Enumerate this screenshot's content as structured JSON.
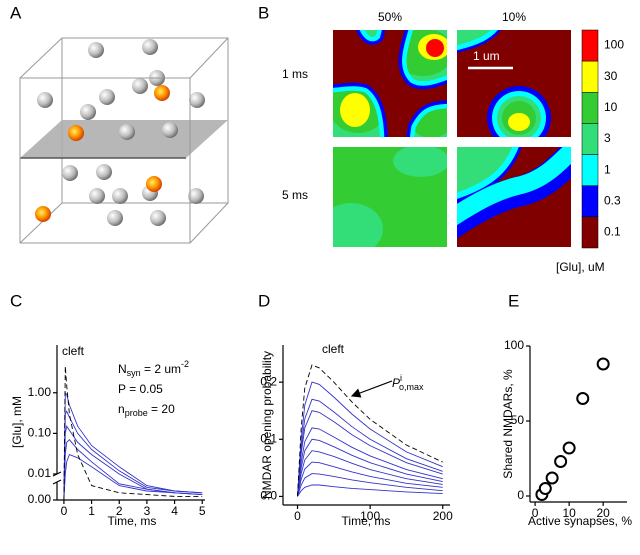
{
  "panel_labels": [
    "A",
    "B",
    "C",
    "D",
    "E"
  ],
  "panel_b": {
    "columns": [
      "50%",
      "10%"
    ],
    "rows": [
      "1 ms",
      "5 ms"
    ],
    "scale_bar": "1 um",
    "colorbar": {
      "labels": [
        "100",
        "30",
        "10",
        "3",
        "1",
        "0.3",
        "0.1"
      ],
      "colors": [
        "#ff0000",
        "#ffff00",
        "#33cc33",
        "#33dd77",
        "#00ffff",
        "#0000ff",
        "#800000"
      ],
      "title": "[Glu], uM"
    }
  },
  "chart_data": [
    {
      "type": "line",
      "log_scale": true,
      "xlabel": "Time, ms",
      "ylabel": "[Glu], mM",
      "x": [
        0,
        0.05,
        0.1,
        0.2,
        0.5,
        1,
        2,
        3,
        4,
        5
      ],
      "xlim": [
        -0.25,
        5.1
      ],
      "ylim": [
        0,
        15
      ],
      "xticks": [
        0,
        1,
        2,
        3,
        4,
        5
      ],
      "yticks": [
        {
          "value": 0,
          "label": "0.00"
        },
        0.01,
        {
          "value": 0.1,
          "label": "0.10"
        },
        {
          "value": 1,
          "label": "1.00"
        }
      ],
      "annotations": [
        [
          {
            "text": "cleft"
          }
        ],
        [
          {
            "text": "N"
          },
          {
            "text": "syn",
            "sub": true
          },
          {
            "text": " = 2 um"
          },
          {
            "text": "-2",
            "sup": true
          }
        ],
        [
          {
            "text": "P = 0.05"
          }
        ],
        [
          {
            "text": "n"
          },
          {
            "text": "probe",
            "sub": true
          },
          {
            "text": " = 20"
          }
        ]
      ],
      "series": [
        {
          "color": "#3333cc",
          "values": [
            0,
            1.0,
            0.9,
            0.5,
            0.15,
            0.05,
            0.015,
            0.008,
            0.005,
            0.004
          ]
        },
        {
          "color": "#3333cc",
          "values": [
            0,
            0.3,
            0.35,
            0.25,
            0.1,
            0.04,
            0.012,
            0.007,
            0.005,
            0.004
          ]
        },
        {
          "color": "#3333cc",
          "values": [
            0,
            0.1,
            0.15,
            0.12,
            0.06,
            0.03,
            0.01,
            0.006,
            0.004,
            0.003
          ]
        },
        {
          "color": "#3333cc",
          "values": [
            0,
            0.03,
            0.06,
            0.07,
            0.04,
            0.02,
            0.009,
            0.006,
            0.004,
            0.003
          ]
        },
        {
          "color": "#3333cc",
          "values": [
            0,
            0.01,
            0.02,
            0.03,
            0.025,
            0.015,
            0.008,
            0.005,
            0.004,
            0.003
          ]
        },
        {
          "color": "#000000",
          "style": "dashed",
          "values": [
            0,
            4.5,
            1.5,
            0.3,
            0.03,
            0.008,
            0.004,
            0.003,
            0.002,
            0.002
          ]
        }
      ]
    },
    {
      "type": "line",
      "xlabel": "Time, ms",
      "ylabel": "NMDAR opening probability",
      "x": [
        0,
        5,
        10,
        20,
        30,
        50,
        75,
        100,
        150,
        200
      ],
      "xlim": [
        -20,
        210
      ],
      "ylim": [
        -0.015,
        0.265
      ],
      "xticks": [
        0,
        100,
        200
      ],
      "yticks": [
        {
          "value": 0,
          "label": "0.0"
        },
        0.1,
        0.2
      ],
      "annotations": [
        [
          {
            "text": "cleft"
          }
        ],
        [
          {
            "text": "P",
            "italic": true
          },
          {
            "text": "i",
            "sup": true
          },
          {
            "text": "o,max",
            "sub": true
          }
        ]
      ],
      "series": [
        {
          "color": "#3333cc",
          "values": [
            0,
            0.1,
            0.16,
            0.2,
            0.196,
            0.174,
            0.144,
            0.118,
            0.078,
            0.052
          ]
        },
        {
          "color": "#3333cc",
          "values": [
            0,
            0.085,
            0.136,
            0.17,
            0.167,
            0.148,
            0.122,
            0.1,
            0.066,
            0.044
          ]
        },
        {
          "color": "#3333cc",
          "values": [
            0,
            0.075,
            0.12,
            0.15,
            0.147,
            0.131,
            0.108,
            0.089,
            0.059,
            0.039
          ]
        },
        {
          "color": "#3333cc",
          "values": [
            0,
            0.06,
            0.096,
            0.12,
            0.118,
            0.104,
            0.086,
            0.071,
            0.047,
            0.031
          ]
        },
        {
          "color": "#3333cc",
          "values": [
            0,
            0.05,
            0.08,
            0.1,
            0.098,
            0.087,
            0.072,
            0.059,
            0.039,
            0.026
          ]
        },
        {
          "color": "#3333cc",
          "values": [
            0,
            0.04,
            0.064,
            0.08,
            0.078,
            0.07,
            0.058,
            0.047,
            0.031,
            0.021
          ]
        },
        {
          "color": "#3333cc",
          "values": [
            0,
            0.03,
            0.048,
            0.06,
            0.059,
            0.052,
            0.043,
            0.035,
            0.023,
            0.016
          ]
        },
        {
          "color": "#3333cc",
          "values": [
            0,
            0.02,
            0.032,
            0.04,
            0.039,
            0.035,
            0.029,
            0.024,
            0.016,
            0.01
          ]
        },
        {
          "color": "#3333cc",
          "values": [
            0,
            0.01,
            0.016,
            0.02,
            0.02,
            0.017,
            0.014,
            0.012,
            0.008,
            0.005
          ]
        },
        {
          "color": "#000000",
          "style": "dashed",
          "values": [
            0,
            0.12,
            0.19,
            0.23,
            0.225,
            0.2,
            0.165,
            0.135,
            0.09,
            0.06
          ]
        }
      ]
    },
    {
      "type": "scatter",
      "xlabel": "Active synapses, %",
      "ylabel": "Shared NMDARs, %",
      "x": [
        2,
        3,
        5,
        7.5,
        10,
        14,
        20
      ],
      "values": [
        1,
        5,
        12,
        23,
        32,
        65,
        88
      ],
      "color": "#000000",
      "xlim": [
        -1.5,
        27
      ],
      "ylim": [
        -4,
        100
      ],
      "xticks": [
        0,
        10,
        20
      ],
      "yticks": [
        0,
        50,
        100
      ]
    }
  ]
}
